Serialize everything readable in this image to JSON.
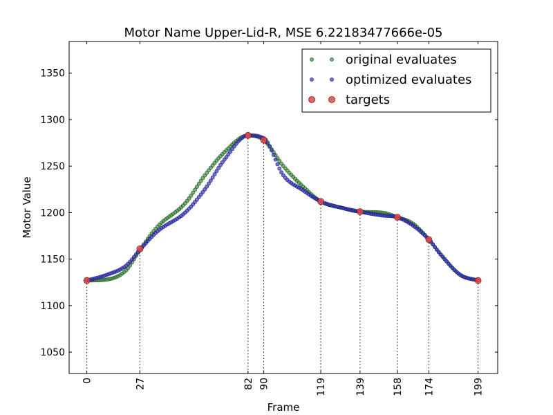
{
  "chart_data": {
    "type": "scatter",
    "title": "Motor Name Upper-Lid-R, MSE 6.22183477666e-05",
    "xlabel": "Frame",
    "ylabel": "Motor Value",
    "xlim": [
      -9,
      209
    ],
    "ylim": [
      1027,
      1384
    ],
    "x_ticks": [
      0,
      27,
      82,
      90,
      119,
      139,
      158,
      174,
      199
    ],
    "y_ticks": [
      1050,
      1100,
      1150,
      1200,
      1250,
      1300,
      1350
    ],
    "grid": false,
    "legend_position": "top-right",
    "targets": {
      "name": "targets",
      "color": "#e8474a",
      "frames": [
        0,
        27,
        82,
        90,
        119,
        139,
        158,
        174,
        199
      ],
      "values": [
        1127,
        1161,
        1283,
        1278,
        1212,
        1201,
        1195,
        1171,
        1127
      ]
    },
    "original_keypoints": {
      "frames": [
        0,
        10,
        20,
        27,
        36,
        50,
        60,
        70,
        82,
        90,
        100,
        110,
        119,
        130,
        139,
        150,
        158,
        166,
        174,
        180,
        190,
        199
      ],
      "values": [
        1127,
        1128,
        1138,
        1160,
        1185,
        1210,
        1240,
        1265,
        1283,
        1278,
        1250,
        1228,
        1212,
        1205,
        1201,
        1200,
        1195,
        1188,
        1171,
        1155,
        1133,
        1127
      ]
    },
    "optimized_keypoints": {
      "frames": [
        0,
        10,
        20,
        27,
        36,
        50,
        60,
        70,
        82,
        90,
        100,
        110,
        119,
        130,
        139,
        150,
        158,
        166,
        174,
        180,
        190,
        199
      ],
      "values": [
        1127,
        1133,
        1143,
        1160,
        1180,
        1200,
        1225,
        1257,
        1283,
        1280,
        1240,
        1224,
        1212,
        1205,
        1201,
        1197,
        1195,
        1186,
        1171,
        1155,
        1133,
        1127
      ]
    },
    "series": [
      {
        "name": "original evaluates",
        "color": "#3c8c3c"
      },
      {
        "name": "optimized evaluates",
        "color": "#3434c4"
      }
    ]
  }
}
